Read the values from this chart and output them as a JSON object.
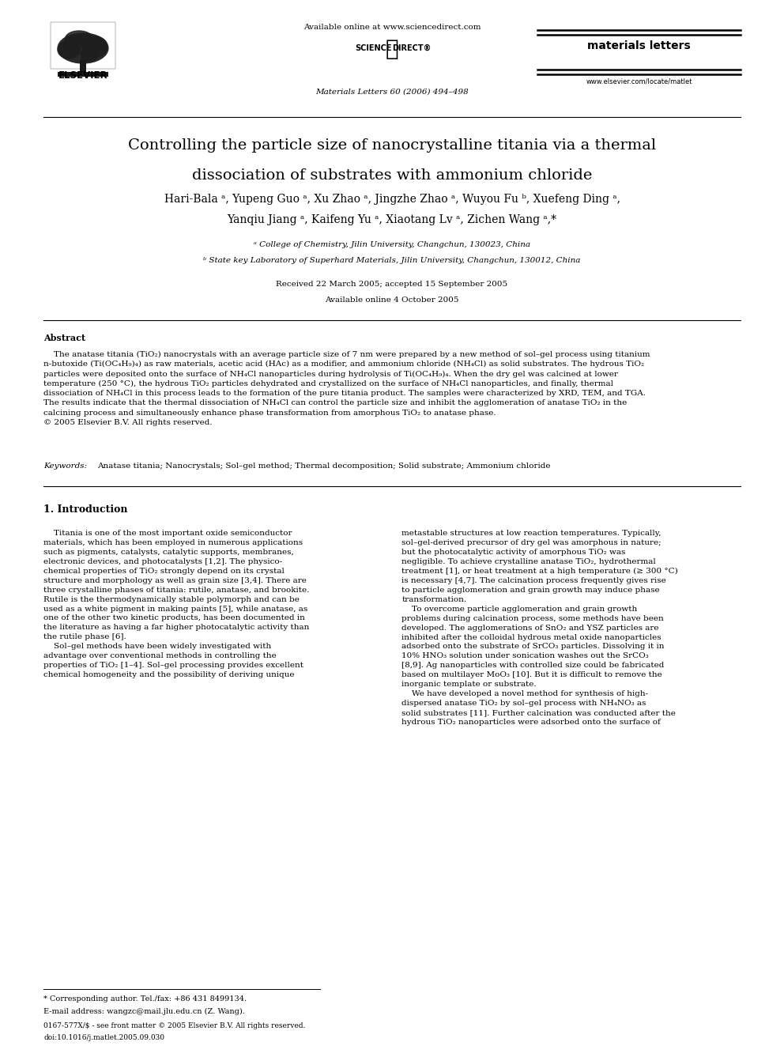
{
  "bg_color": "#ffffff",
  "page_width": 9.92,
  "page_height": 13.23,
  "header": {
    "available_online": "Available online at www.sciencedirect.com",
    "journal_name": "materials letters",
    "journal_info": "Materials Letters 60 (2006) 494–498",
    "website": "www.elsevier.com/locate/matlet",
    "elsevier_text": "ELSEVIER",
    "science_direct_left": "SCIENCE",
    "science_direct_right": "DIRECT®"
  },
  "title_line1": "Controlling the particle size of nanocrystalline titania via a thermal",
  "title_line2": "dissociation of substrates with ammonium chloride",
  "author_line1": "Hari-Bala ᵃ, Yupeng Guo ᵃ, Xu Zhao ᵃ, Jingzhe Zhao ᵃ, Wuyou Fu ᵇ, Xuefeng Ding ᵃ,",
  "author_line2": "Yanqiu Jiang ᵃ, Kaifeng Yu ᵃ, Xiaotang Lv ᵃ, Zichen Wang ᵃ,*",
  "affil_a": "ᵃ College of Chemistry, Jilin University, Changchun, 130023, China",
  "affil_b": "ᵇ State key Laboratory of Superhard Materials, Jilin University, Changchun, 130012, China",
  "received": "Received 22 March 2005; accepted 15 September 2005",
  "available_online_date": "Available online 4 October 2005",
  "abstract_label": "Abstract",
  "abstract_body": "    The anatase titania (TiO₂) nanocrystals with an average particle size of 7 nm were prepared by a new method of sol–gel process using titanium\nn-butoxide (Ti(OC₄H₉)₄) as raw materials, acetic acid (HAc) as a modifier, and ammonium chloride (NH₄Cl) as solid substrates. The hydrous TiO₂\nparticles were deposited onto the surface of NH₄Cl nanoparticles during hydrolysis of Ti(OC₄H₉)₄. When the dry gel was calcined at lower\ntemperature (250 °C), the hydrous TiO₂ particles dehydrated and crystallized on the surface of NH₄Cl nanoparticles, and finally, thermal\ndissociation of NH₄Cl in this process leads to the formation of the pure titania product. The samples were characterized by XRD, TEM, and TGA.\nThe results indicate that the thermal dissociation of NH₄Cl can control the particle size and inhibit the agglomeration of anatase TiO₂ in the\ncalcining process and simultaneously enhance phase transformation from amorphous TiO₂ to anatase phase.\n© 2005 Elsevier B.V. All rights reserved.",
  "keywords_text": "Anatase titania; Nanocrystals; Sol–gel method; Thermal decomposition; Solid substrate; Ammonium chloride",
  "section1_title": "1. Introduction",
  "col1_text": "    Titania is one of the most important oxide semiconductor\nmaterials, which has been employed in numerous applications\nsuch as pigments, catalysts, catalytic supports, membranes,\nelectronic devices, and photocatalysts [1,2]. The physico-\nchemical properties of TiO₂ strongly depend on its crystal\nstructure and morphology as well as grain size [3,4]. There are\nthree crystalline phases of titania: rutile, anatase, and brookite.\nRutile is the thermodynamically stable polymorph and can be\nused as a white pigment in making paints [5], while anatase, as\none of the other two kinetic products, has been documented in\nthe literature as having a far higher photocatalytic activity than\nthe rutile phase [6].\n    Sol–gel methods have been widely investigated with\nadvantage over conventional methods in controlling the\nproperties of TiO₂ [1–4]. Sol–gel processing provides excellent\nchemical homogeneity and the possibility of deriving unique",
  "col2_text": "metastable structures at low reaction temperatures. Typically,\nsol–gel-derived precursor of dry gel was amorphous in nature;\nbut the photocatalytic activity of amorphous TiO₂ was\nnegligible. To achieve crystalline anatase TiO₂, hydrothermal\ntreatment [1], or heat treatment at a high temperature (≥ 300 °C)\nis necessary [4,7]. The calcination process frequently gives rise\nto particle agglomeration and grain growth may induce phase\ntransformation.\n    To overcome particle agglomeration and grain growth\nproblems during calcination process, some methods have been\ndeveloped. The agglomerations of SnO₂ and YSZ particles are\ninhibited after the colloidal hydrous metal oxide nanoparticles\nadsorbed onto the substrate of SrCO₃ particles. Dissolving it in\n10% HNO₃ solution under sonication washes out the SrCO₃\n[8,9]. Ag nanoparticles with controlled size could be fabricated\nbased on multilayer MoO₃ [10]. But it is difficult to remove the\ninorganic template or substrate.\n    We have developed a novel method for synthesis of high-\ndispersed anatase TiO₂ by sol–gel process with NH₄NO₃ as\nsolid substrates [11]. Further calcination was conducted after the\nhydrous TiO₂ nanoparticles were adsorbed onto the surface of",
  "footnote_star": "* Corresponding author. Tel./fax: +86 431 8499134.",
  "footnote_email": "E-mail address: wangzc@mail.jlu.edu.cn (Z. Wang).",
  "footer_issn": "0167-577X/$ - see front matter © 2005 Elsevier B.V. All rights reserved.",
  "footer_doi": "doi:10.1016/j.matlet.2005.09.030"
}
